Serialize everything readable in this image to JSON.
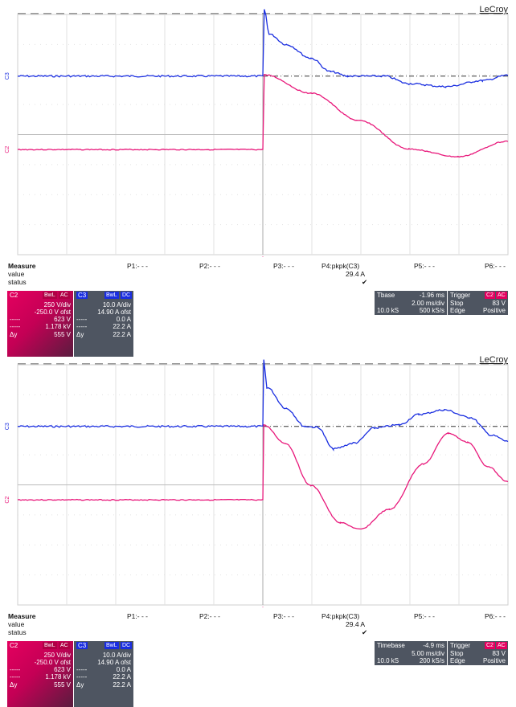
{
  "chart_data": [
    {
      "type": "line",
      "logo": "LeCroy",
      "time_per_div_ms": 2.0,
      "x_range_ms": [
        -11.96,
        8.04
      ],
      "trigger_ms": -1.96,
      "series": [
        {
          "name": "C3",
          "color": "#1a2ee0",
          "unit": "A",
          "scale_per_div": 10.0,
          "points": [
            [
              -11.96,
              0
            ],
            [
              -1.96,
              0
            ],
            [
              -1.9,
              22.2
            ],
            [
              -1.7,
              14
            ],
            [
              -1.0,
              10.5
            ],
            [
              0,
              6
            ],
            [
              0.8,
              1.5
            ],
            [
              1.5,
              0
            ],
            [
              3.0,
              0
            ],
            [
              4.0,
              -2.5
            ],
            [
              5.5,
              -3.5
            ],
            [
              7.0,
              -1.5
            ],
            [
              8.04,
              0.3
            ]
          ]
        },
        {
          "name": "C2",
          "color": "#e8177a",
          "unit": "V",
          "scale_per_div": 250,
          "points": [
            [
              -11.96,
              0
            ],
            [
              -1.96,
              0
            ],
            [
              -1.9,
              623
            ],
            [
              0,
              470
            ],
            [
              2,
              240
            ],
            [
              4,
              5
            ],
            [
              6,
              -60
            ],
            [
              8.04,
              70
            ]
          ]
        }
      ],
      "measure": {
        "title": "Measure",
        "value_label": "value",
        "status_label": "status",
        "params": [
          "P1:- - -",
          "P2:- - -",
          "P3:- - -",
          "P4:pkpk(C3)",
          "P5:- - -",
          "P6:- - -"
        ],
        "p4_value": "29.4 A",
        "p4_status": "✔"
      },
      "c2_panel": {
        "name": "C2",
        "tag1": "BwL",
        "tag2": "AC",
        "scale": "250 V/div",
        "offset": "-250.0 V ofst",
        "r1l": "-----",
        "r1": "623 V",
        "r2l": "-----",
        "r2": "1.178 kV",
        "dyl": "Δy",
        "dy": "555 V"
      },
      "c3_panel": {
        "name": "C3",
        "tag1": "BwL",
        "tag2": "DC",
        "scale": "10.0 A/div",
        "offset": "14.90 A ofst",
        "r1l": "-----",
        "r1": "0.0 A",
        "r2l": "-----",
        "r2": "22.2 A",
        "dyl": "Δy",
        "dy": "22.2 A"
      },
      "timebase": {
        "label": "Tbase",
        "value": "-1.96 ms",
        "div": "2.00 ms/div",
        "samples": "10.0 kS",
        "rate": "500 kS/s"
      },
      "trigger": {
        "label": "Trigger",
        "src": "C2",
        "coupling": "AC",
        "mode": "Stop",
        "level": "83 V",
        "type": "Edge",
        "slope": "Positive"
      }
    },
    {
      "type": "line",
      "logo": "LeCroy",
      "time_per_div_ms": 5.0,
      "x_range_ms": [
        -29.9,
        20.1
      ],
      "trigger_ms": -4.9,
      "series": [
        {
          "name": "C3",
          "color": "#1a2ee0",
          "unit": "A",
          "scale_per_div": 10.0,
          "points": [
            [
              -29.9,
              0
            ],
            [
              -4.9,
              0
            ],
            [
              -4.8,
              22.2
            ],
            [
              -4.5,
              13
            ],
            [
              -2.5,
              6
            ],
            [
              -0.6,
              0
            ],
            [
              0.7,
              -0.3
            ],
            [
              2.3,
              -7.5
            ],
            [
              4.5,
              -5.5
            ],
            [
              6.5,
              -0.5
            ],
            [
              9.0,
              0.5
            ],
            [
              11,
              4
            ],
            [
              13.6,
              5.5
            ],
            [
              16.2,
              3
            ],
            [
              18.5,
              -3
            ],
            [
              20.1,
              -5
            ]
          ]
        },
        {
          "name": "C2",
          "color": "#e8177a",
          "unit": "V",
          "scale_per_div": 250,
          "points": [
            [
              -29.9,
              0
            ],
            [
              -4.9,
              0
            ],
            [
              -4.8,
              623
            ],
            [
              -2.6,
              470
            ],
            [
              0,
              120
            ],
            [
              3,
              -190
            ],
            [
              5,
              -245
            ],
            [
              8,
              -80
            ],
            [
              11.5,
              300
            ],
            [
              14,
              555
            ],
            [
              16,
              480
            ],
            [
              18,
              280
            ],
            [
              20.1,
              150
            ]
          ]
        }
      ],
      "measure": {
        "title": "Measure",
        "value_label": "value",
        "status_label": "status",
        "params": [
          "P1:- - -",
          "P2:- - -",
          "P3:- - -",
          "P4:pkpk(C3)",
          "P5:- - -",
          "P6:- - -"
        ],
        "p4_value": "29.4 A",
        "p4_status": "✔"
      },
      "c2_panel": {
        "name": "C2",
        "tag1": "BwL",
        "tag2": "AC",
        "scale": "250 V/div",
        "offset": "-250.0 V ofst",
        "r1l": "-----",
        "r1": "623 V",
        "r2l": "-----",
        "r2": "1.178 kV",
        "dyl": "Δy",
        "dy": "555 V"
      },
      "c3_panel": {
        "name": "C3",
        "tag1": "BwL",
        "tag2": "DC",
        "scale": "10.0 A/div",
        "offset": "14.90 A ofst",
        "r1l": "-----",
        "r1": "0.0 A",
        "r2l": "-----",
        "r2": "22.2 A",
        "dyl": "Δy",
        "dy": "22.2 A"
      },
      "timebase": {
        "label": "Timebase",
        "value": "-4.9 ms",
        "div": "5.00 ms/div",
        "samples": "10.0 kS",
        "rate": "200 kS/s"
      },
      "trigger": {
        "label": "Trigger",
        "src": "C2",
        "coupling": "AC",
        "mode": "Stop",
        "level": "83 V",
        "type": "Edge",
        "slope": "Positive"
      }
    }
  ]
}
